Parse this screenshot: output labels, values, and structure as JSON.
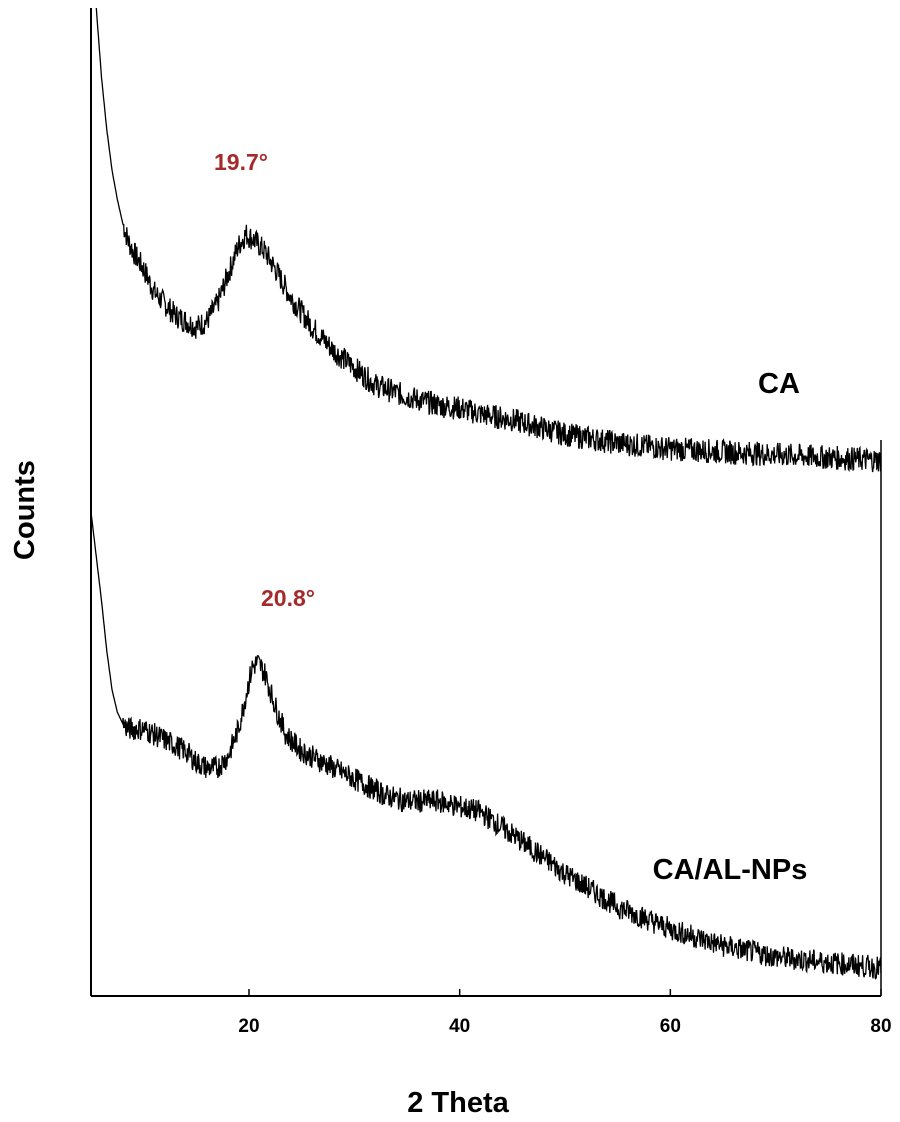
{
  "chart_data": {
    "type": "line",
    "xlabel": "2 Theta",
    "ylabel": "Counts",
    "xlim": [
      5,
      80
    ],
    "xticks": [
      20,
      40,
      60,
      80
    ],
    "y_tick_labels_shown": false,
    "grid": false,
    "colors": {
      "line": "#000000",
      "annotation": "#a52a2a"
    },
    "series": [
      {
        "name": "CA",
        "x": [
          5.5,
          6.0,
          6.5,
          7.0,
          7.5,
          8.0,
          8.5,
          9.0,
          10,
          11,
          12,
          13,
          14,
          15,
          16,
          17,
          18,
          19,
          19.7,
          20.5,
          21.5,
          22.5,
          24,
          26,
          28,
          30,
          32,
          35,
          38,
          40,
          42,
          45,
          50,
          55,
          60,
          65,
          70,
          75,
          80
        ],
        "y": [
          100,
          88,
          79,
          72,
          67,
          63,
          60,
          58,
          55,
          51,
          49,
          47,
          46,
          45,
          46,
          49,
          54,
          59,
          61,
          60,
          58,
          55,
          50,
          45,
          41,
          38,
          35,
          33,
          31.5,
          31,
          30,
          29,
          26.5,
          25,
          24,
          23.5,
          23,
          22.5,
          22
        ]
      },
      {
        "name": "CA/AL-NPs",
        "x": [
          5.0,
          5.5,
          6.0,
          6.5,
          7.0,
          7.5,
          8.0,
          8.5,
          9.0,
          10,
          11,
          12,
          13,
          14,
          15,
          16,
          17,
          18,
          19,
          19.7,
          20.3,
          20.8,
          21.5,
          22.5,
          23.5,
          25,
          27,
          29,
          31,
          33,
          35,
          38,
          40,
          42,
          45,
          50,
          55,
          60,
          65,
          70,
          75,
          80
        ],
        "y": [
          100,
          92,
          84,
          75,
          68,
          64,
          62,
          61,
          61,
          61,
          60,
          59,
          58,
          57,
          55,
          54,
          54,
          56,
          61,
          67,
          72,
          73,
          71,
          65,
          60,
          57,
          55,
          53,
          51,
          49,
          48,
          48,
          47,
          46,
          42,
          35,
          29,
          25,
          22,
          20,
          19,
          18
        ]
      }
    ],
    "annotations": [
      {
        "text": "19.7°",
        "series": "CA",
        "x": 19.7
      },
      {
        "text": "20.8°",
        "series": "CA/AL-NPs",
        "x": 20.8
      }
    ],
    "series_labels": [
      {
        "text": "CA",
        "series": "CA"
      },
      {
        "text": "CA/AL-NPs",
        "series": "CA/AL-NPs"
      }
    ]
  }
}
